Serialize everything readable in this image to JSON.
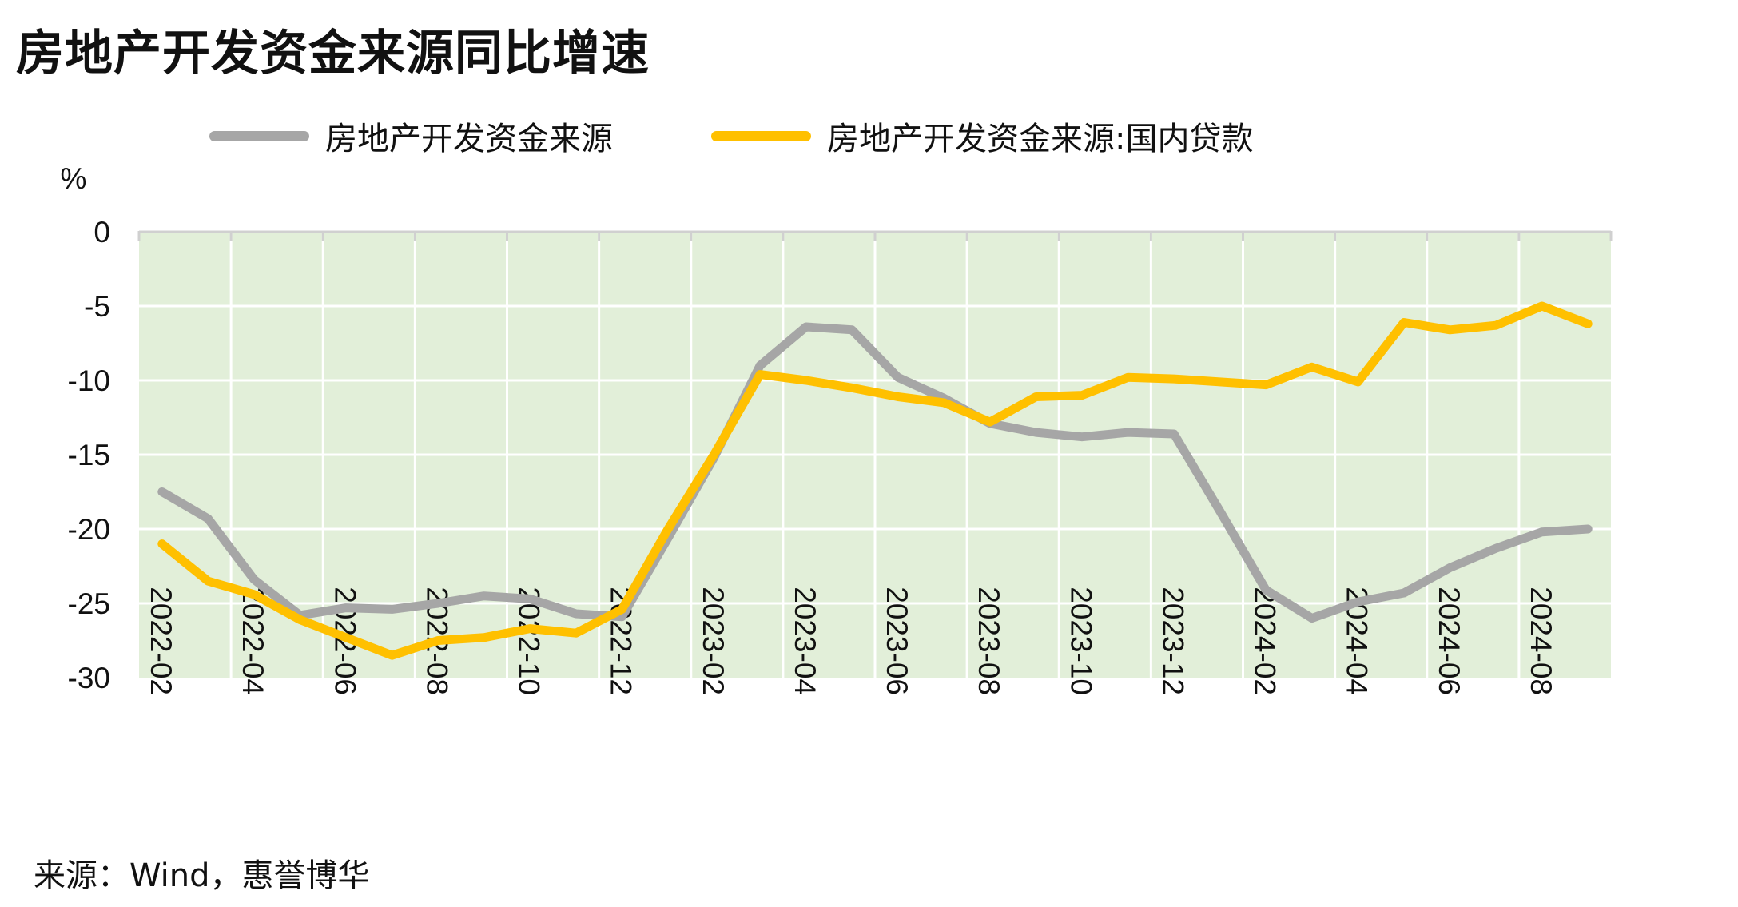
{
  "title": "房地产开发资金来源同比增速",
  "source": "来源：Wind，惠誉博华",
  "colors": {
    "plot_bg": "#e2efd9",
    "grid": "#ffffff",
    "axis": "#d0d0d0"
  },
  "chart_data": {
    "type": "line",
    "ylabel": "%",
    "ylim": [
      -30,
      0
    ],
    "yticks": [
      0,
      -5,
      -10,
      -15,
      -20,
      -25,
      -30
    ],
    "grid": true,
    "legend_position": "top",
    "x": [
      "2022-02",
      "2022-03",
      "2022-04",
      "2022-05",
      "2022-06",
      "2022-07",
      "2022-08",
      "2022-09",
      "2022-10",
      "2022-11",
      "2022-12",
      "2023-01",
      "2023-02",
      "2023-03",
      "2023-04",
      "2023-05",
      "2023-06",
      "2023-07",
      "2023-08",
      "2023-09",
      "2023-10",
      "2023-11",
      "2023-12",
      "2024-01",
      "2024-02",
      "2024-03",
      "2024-04",
      "2024-05",
      "2024-06",
      "2024-07",
      "2024-08",
      "2024-09"
    ],
    "xticks": [
      "2022-02",
      "2022-04",
      "2022-06",
      "2022-08",
      "2022-10",
      "2022-12",
      "2023-02",
      "2023-04",
      "2023-06",
      "2023-08",
      "2023-10",
      "2023-12",
      "2024-02",
      "2024-04",
      "2024-06",
      "2024-08"
    ],
    "series": [
      {
        "name": "房地产开发资金来源",
        "color": "#a6a6a6",
        "values": [
          -17.5,
          -19.3,
          -23.4,
          -25.8,
          -25.3,
          -25.4,
          -25.0,
          -24.5,
          -24.7,
          -25.7,
          -25.9,
          -20.6,
          -15.2,
          -9.0,
          -6.4,
          -6.6,
          -9.8,
          -11.2,
          -12.9,
          -13.5,
          -13.8,
          -13.5,
          -13.6,
          -18.8,
          -24.1,
          -26.0,
          -24.9,
          -24.3,
          -22.6,
          -21.3,
          -20.2,
          -20.0
        ]
      },
      {
        "name": "房地产开发资金来源:国内贷款",
        "color": "#ffc000",
        "values": [
          -21.0,
          -23.5,
          -24.4,
          -26.1,
          -27.3,
          -28.5,
          -27.5,
          -27.3,
          -26.7,
          -27.0,
          -25.4,
          -20.0,
          -15.0,
          -9.6,
          -10.0,
          -10.5,
          -11.1,
          -11.5,
          -12.8,
          -11.1,
          -11.0,
          -9.8,
          -9.9,
          -10.1,
          -10.3,
          -9.1,
          -10.1,
          -6.1,
          -6.6,
          -6.3,
          -5.0,
          -6.2
        ]
      }
    ]
  }
}
